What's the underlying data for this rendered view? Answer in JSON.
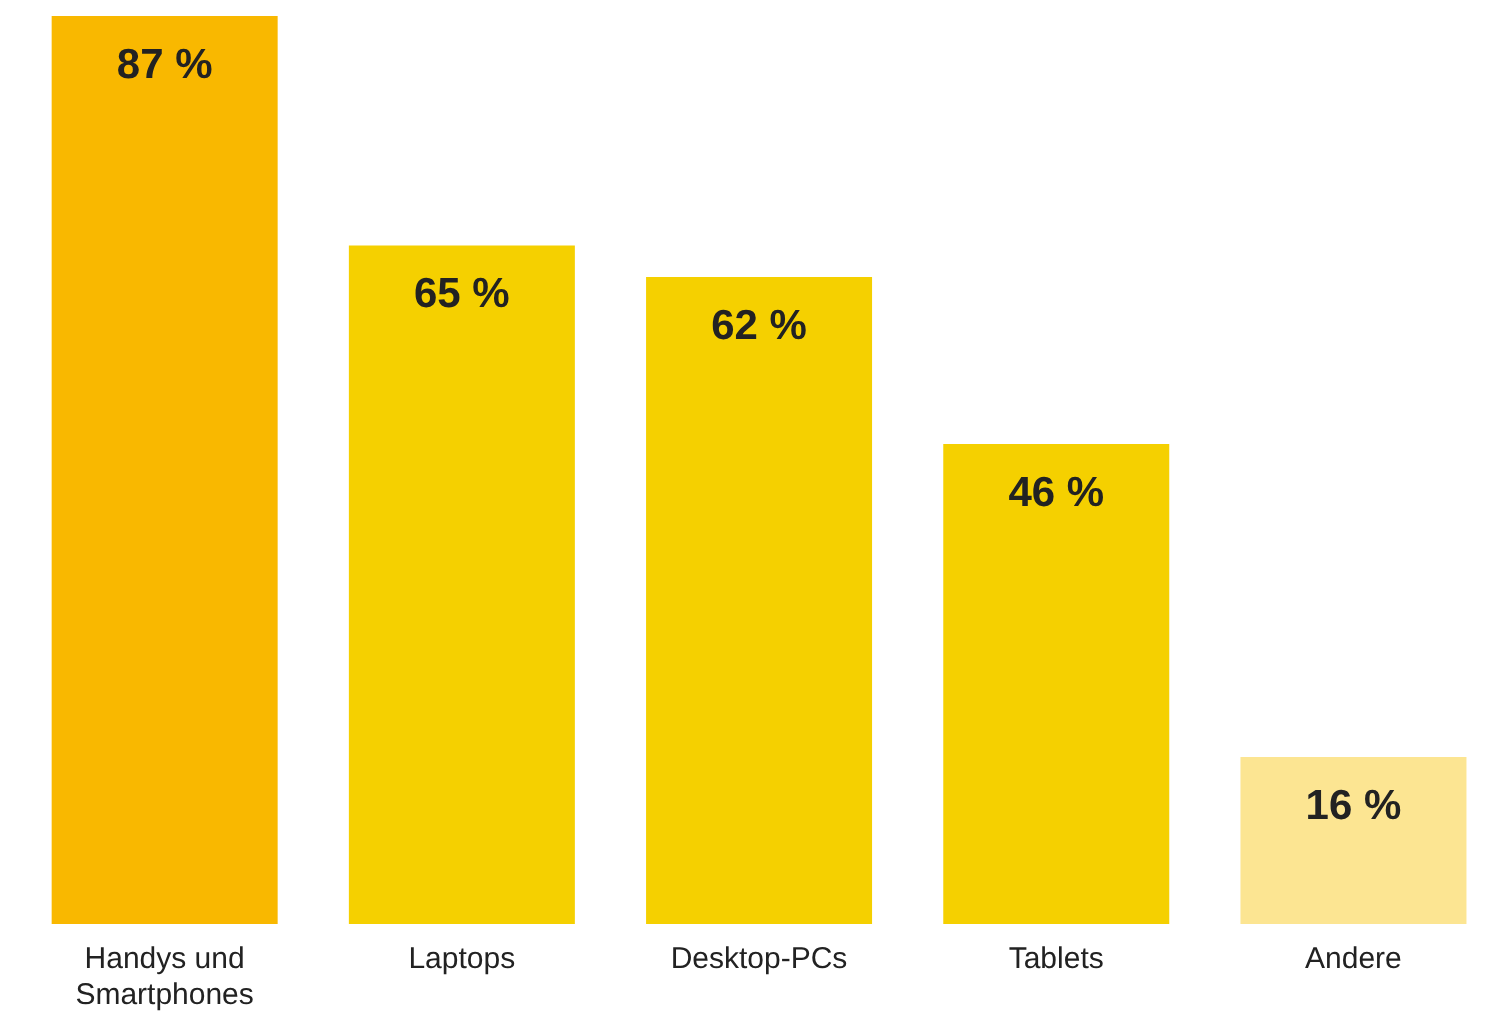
{
  "chart_data": {
    "type": "bar",
    "categories": [
      "Handys und Smartphones",
      "Laptops",
      "Desktop-PCs",
      "Tablets",
      "Andere"
    ],
    "values": [
      87,
      65,
      62,
      46,
      16
    ],
    "colors": [
      "#f9b800",
      "#f5d000",
      "#f5d000",
      "#f5d000",
      "#fce592"
    ],
    "value_labels": [
      "87 %",
      "65 %",
      "62 %",
      "46 %",
      "16 %"
    ],
    "grid": false,
    "legend": false
  }
}
